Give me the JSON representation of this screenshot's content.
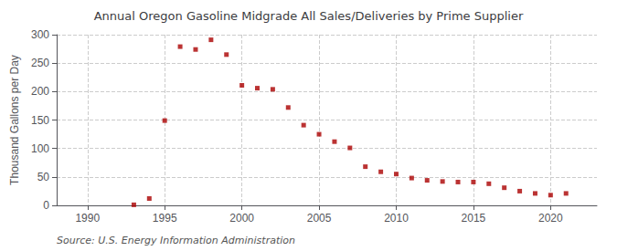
{
  "chart_data": {
    "type": "scatter",
    "title": "Annual Oregon Gasoline Midgrade All Sales/Deliveries by Prime Supplier",
    "ylabel": "Thousand Gallons per Day",
    "annotation": "Source: U.S. Energy Information Administration",
    "x": [
      1993,
      1994,
      1995,
      1996,
      1997,
      1998,
      1999,
      2000,
      2001,
      2002,
      2003,
      2004,
      2005,
      2006,
      2007,
      2008,
      2009,
      2010,
      2011,
      2012,
      2013,
      2014,
      2015,
      2016,
      2017,
      2018,
      2019,
      2020,
      2021
    ],
    "values": [
      1,
      12,
      149,
      279,
      274,
      291,
      265,
      211,
      206,
      204,
      172,
      141,
      125,
      112,
      101,
      68,
      59,
      55,
      48,
      44,
      42,
      41,
      41,
      38,
      31,
      25,
      21,
      18,
      21
    ],
    "color": "#aa0000",
    "marker": "square",
    "xlim": [
      1988,
      2023
    ],
    "xticks": [
      1990,
      1995,
      2000,
      2005,
      2010,
      2015,
      2020
    ],
    "ylim": [
      0,
      300
    ],
    "yticks": [
      0,
      50,
      100,
      150,
      200,
      250,
      300
    ],
    "grid": true
  }
}
